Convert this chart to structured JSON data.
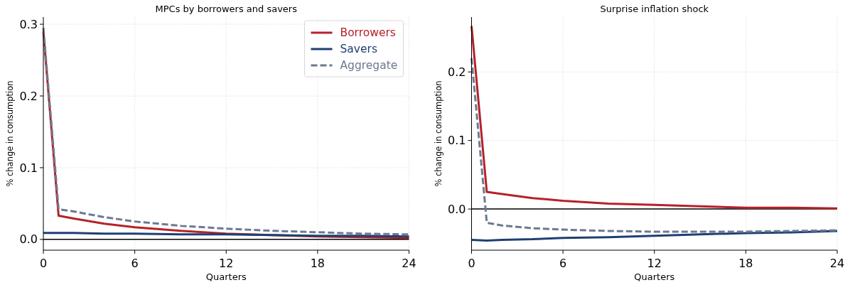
{
  "chart_data": [
    {
      "type": "line",
      "title": "MPCs by borrowers and savers",
      "xlabel": "Quarters",
      "ylabel": "% change in consumption",
      "x": [
        0,
        1,
        2,
        4,
        6,
        9,
        12,
        15,
        18,
        21,
        24
      ],
      "xlim": [
        0,
        24
      ],
      "xticks": [
        0,
        6,
        12,
        18,
        24
      ],
      "ylim": [
        -0.015,
        0.31
      ],
      "yticks": [
        {
          "value": 0,
          "label": "0.0"
        },
        0.1,
        0.2,
        0.3
      ],
      "grid": true,
      "legend": "top right",
      "ref_lines": [
        {
          "axis": "y",
          "value": 0,
          "color": "#000000"
        }
      ],
      "series": [
        {
          "name": "Borrowers",
          "color": "#b5222a",
          "values": [
            0.29,
            0.033,
            0.029,
            0.022,
            0.017,
            0.012,
            0.008,
            0.006,
            0.004,
            0.003,
            0.002
          ]
        },
        {
          "name": "Savers",
          "color": "#1f3f73",
          "values": [
            0.009,
            0.009,
            0.009,
            0.008,
            0.008,
            0.007,
            0.007,
            0.006,
            0.005,
            0.005,
            0.004
          ]
        },
        {
          "name": "Aggregate",
          "color": "#6c7a90",
          "line_style": "dashed",
          "values": [
            0.295,
            0.042,
            0.039,
            0.031,
            0.025,
            0.019,
            0.015,
            0.012,
            0.01,
            0.008,
            0.007
          ]
        }
      ]
    },
    {
      "type": "line",
      "title": "Surprise inflation shock",
      "xlabel": "Quarters",
      "ylabel": "% change in consumption",
      "x": [
        0,
        1,
        2,
        4,
        6,
        9,
        12,
        15,
        18,
        21,
        24
      ],
      "xlim": [
        0,
        24
      ],
      "xticks": [
        0,
        6,
        12,
        18,
        24
      ],
      "ylim": [
        -0.06,
        0.28
      ],
      "yticks": [
        {
          "value": 0,
          "label": "0.0"
        },
        0.1,
        0.2
      ],
      "grid": true,
      "ref_lines": [
        {
          "axis": "y",
          "value": 0,
          "color": "#000000"
        }
      ],
      "series": [
        {
          "color": "#b5222a",
          "values": [
            0.267,
            0.025,
            0.022,
            0.016,
            0.012,
            0.008,
            0.006,
            0.004,
            0.002,
            0.002,
            0.001
          ]
        },
        {
          "color": "#1f3f73",
          "values": [
            -0.045,
            -0.046,
            -0.045,
            -0.044,
            -0.042,
            -0.041,
            -0.039,
            -0.037,
            -0.035,
            -0.034,
            -0.032
          ]
        },
        {
          "color": "#6c7a90",
          "line_style": "dashed",
          "values": [
            0.22,
            -0.02,
            -0.024,
            -0.028,
            -0.03,
            -0.032,
            -0.033,
            -0.033,
            -0.033,
            -0.032,
            -0.031
          ]
        }
      ]
    }
  ]
}
